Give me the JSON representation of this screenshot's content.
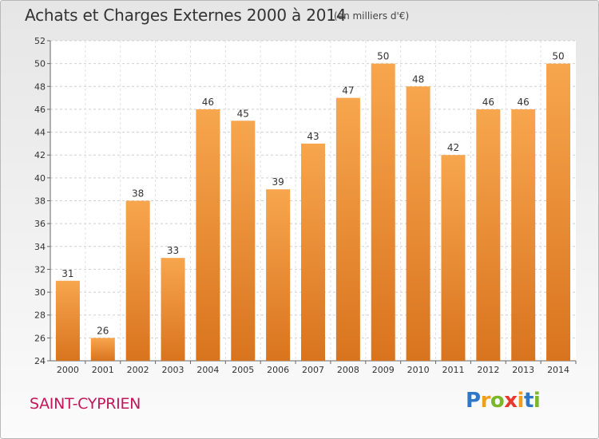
{
  "header": {
    "title": "Achats et Charges Externes 2000 à 2014",
    "subtitle": "(en milliers d'€)"
  },
  "footer": {
    "city": "SAINT-CYPRIEN",
    "logo_text": "Proxiti"
  },
  "colors": {
    "bar_top": "#f7a64e",
    "bar_bottom": "#d9741e",
    "city": "#c2185b",
    "logo_letters": [
      "#2e78c7",
      "#f29d1c",
      "#7ab829",
      "#e8372c",
      "#f29d1c",
      "#2e78c7",
      "#7ab829"
    ]
  },
  "chart_data": {
    "type": "bar",
    "categories": [
      "2000",
      "2001",
      "2002",
      "2003",
      "2004",
      "2005",
      "2006",
      "2007",
      "2008",
      "2009",
      "2010",
      "2011",
      "2012",
      "2013",
      "2014"
    ],
    "values": [
      31,
      26,
      38,
      33,
      46,
      45,
      39,
      43,
      47,
      50,
      48,
      42,
      46,
      46,
      50
    ],
    "ylim": [
      24,
      52
    ],
    "yticks": [
      24,
      26,
      28,
      30,
      32,
      34,
      36,
      38,
      40,
      42,
      44,
      46,
      48,
      50,
      52
    ],
    "grid": true,
    "data_labels": true
  }
}
